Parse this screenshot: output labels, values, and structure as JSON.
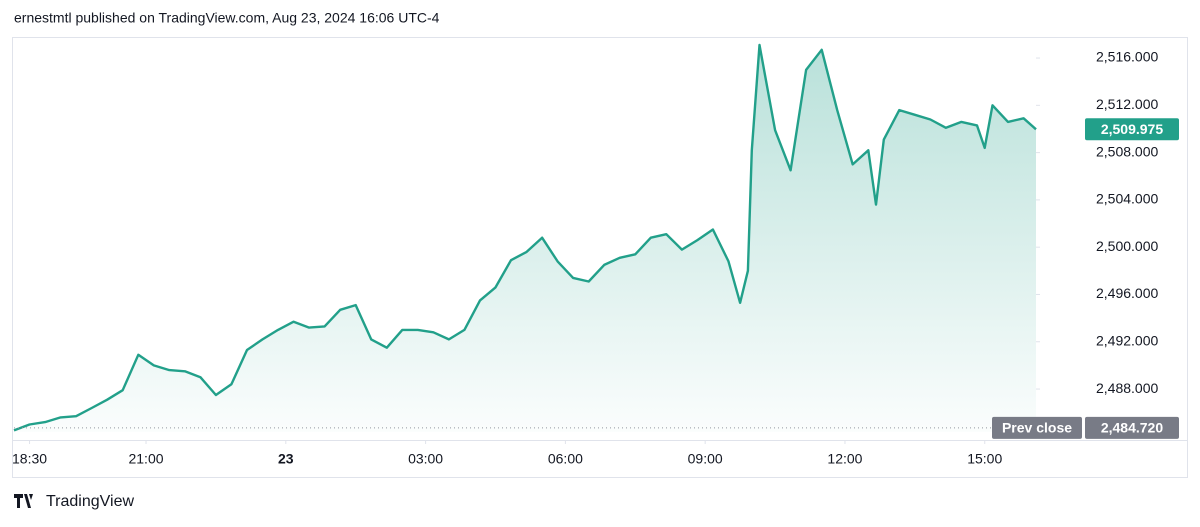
{
  "chart_data": {
    "type": "area",
    "title": "ernestmtl published on TradingView.com, Aug 23, 2024 16:06 UTC-4",
    "brand": "TradingView",
    "color": "#22a08a",
    "x": [
      "18:10",
      "18:30",
      "18:50",
      "19:10",
      "19:30",
      "19:50",
      "20:10",
      "20:30",
      "20:50",
      "21:10",
      "21:30",
      "21:50",
      "22:10",
      "22:30",
      "22:50",
      "23:10",
      "23:30",
      "23:50",
      "00:10",
      "00:30",
      "00:50",
      "01:10",
      "01:30",
      "01:50",
      "02:10",
      "02:30",
      "02:50",
      "03:10",
      "03:30",
      "03:50",
      "04:10",
      "04:30",
      "04:50",
      "05:10",
      "05:30",
      "05:50",
      "06:10",
      "06:30",
      "06:50",
      "07:10",
      "07:30",
      "07:50",
      "08:10",
      "08:30",
      "08:50",
      "09:10",
      "09:30",
      "09:45",
      "09:55",
      "10:00",
      "10:10",
      "10:30",
      "10:50",
      "11:10",
      "11:30",
      "11:50",
      "12:10",
      "12:30",
      "12:40",
      "12:50",
      "13:10",
      "13:30",
      "13:50",
      "14:10",
      "14:30",
      "14:50",
      "15:00",
      "15:10",
      "15:30",
      "15:50",
      "16:06"
    ],
    "values": [
      2484.5,
      2485.0,
      2485.2,
      2485.6,
      2485.7,
      2486.4,
      2487.1,
      2487.9,
      2490.9,
      2490.0,
      2489.6,
      2489.5,
      2489.0,
      2487.5,
      2488.4,
      2491.3,
      2492.2,
      2493.0,
      2493.7,
      2493.2,
      2493.3,
      2494.7,
      2495.1,
      2492.2,
      2491.5,
      2493.0,
      2493.0,
      2492.8,
      2492.2,
      2493.0,
      2495.5,
      2496.6,
      2498.9,
      2499.6,
      2500.8,
      2498.8,
      2497.4,
      2497.1,
      2498.5,
      2499.1,
      2499.4,
      2500.8,
      2501.1,
      2499.8,
      2500.6,
      2501.5,
      2498.8,
      2495.3,
      2498.0,
      2508.2,
      2517.1,
      2509.9,
      2506.5,
      2515.0,
      2516.7,
      2511.6,
      2507.0,
      2508.2,
      2503.6,
      2509.1,
      2511.6,
      2511.2,
      2510.8,
      2510.1,
      2510.6,
      2510.3,
      2508.4,
      2512.0,
      2510.6,
      2510.9,
      2509.975
    ],
    "last_value_label": "2,509.975",
    "reference_line": {
      "label": "Prev close",
      "value": 2484.72,
      "value_label": "2,484.720"
    },
    "ylim": [
      2483.69,
      2517.78
    ],
    "yticks": [
      {
        "value": 2488,
        "label": "2,488.000"
      },
      {
        "value": 2492,
        "label": "2,492.000"
      },
      {
        "value": 2496,
        "label": "2,496.000"
      },
      {
        "value": 2500,
        "label": "2,500.000"
      },
      {
        "value": 2504,
        "label": "2,504.000"
      },
      {
        "value": 2508,
        "label": "2,508.000"
      },
      {
        "value": 2512,
        "label": "2,512.000"
      },
      {
        "value": 2516,
        "label": "2,516.000"
      }
    ],
    "xticks": [
      {
        "value": "18:30",
        "label": "18:30"
      },
      {
        "value": "21:00",
        "label": "21:00"
      },
      {
        "value": "00:00",
        "label": "23"
      },
      {
        "value": "03:00",
        "label": "03:00"
      },
      {
        "value": "06:00",
        "label": "06:00"
      },
      {
        "value": "09:00",
        "label": "09:00"
      },
      {
        "value": "12:00",
        "label": "12:00"
      },
      {
        "value": "15:00",
        "label": "15:00"
      }
    ]
  }
}
